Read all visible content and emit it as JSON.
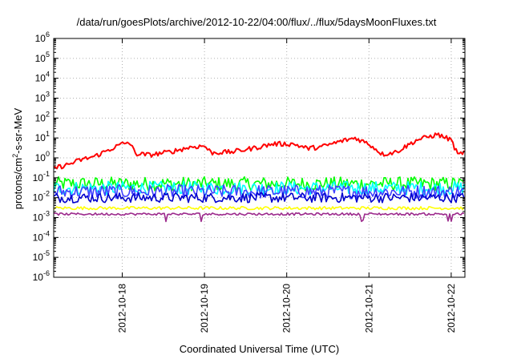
{
  "chart_data": {
    "type": "line",
    "title": "/data/run/goesPlots/archive/2012-10-22/04:00/flux/../flux/5daysMoonFluxes.txt",
    "xlabel": "Coordinated Universal Time (UTC)",
    "ylabel": {
      "prefix": "protons/cm",
      "sup": "2",
      "suffix": "-s-sr-MeV"
    },
    "yscale": "log",
    "ylim": [
      1e-06,
      1000000.0
    ],
    "y_ticks": [
      {
        "base": "10",
        "exp": "-6",
        "value": 1e-06
      },
      {
        "base": "10",
        "exp": "-5",
        "value": 1e-05
      },
      {
        "base": "10",
        "exp": "-4",
        "value": 0.0001
      },
      {
        "base": "10",
        "exp": "-3",
        "value": 0.001
      },
      {
        "base": "10",
        "exp": "-2",
        "value": 0.01
      },
      {
        "base": "10",
        "exp": "-1",
        "value": 0.1
      },
      {
        "base": "10",
        "exp": "0",
        "value": 1.0
      },
      {
        "base": "10",
        "exp": "1",
        "value": 10.0
      },
      {
        "base": "10",
        "exp": "2",
        "value": 100.0
      },
      {
        "base": "10",
        "exp": "3",
        "value": 1000.0
      },
      {
        "base": "10",
        "exp": "4",
        "value": 10000.0
      },
      {
        "base": "10",
        "exp": "5",
        "value": 100000.0
      },
      {
        "base": "10",
        "exp": "6",
        "value": 1000000.0
      }
    ],
    "xlim": [
      "2012-10-17T04:00",
      "2012-10-22T04:00"
    ],
    "x_ticks": [
      {
        "label": "2012-10-18",
        "value": "2012-10-18T00:00"
      },
      {
        "label": "2012-10-19",
        "value": "2012-10-19T00:00"
      },
      {
        "label": "2012-10-20",
        "value": "2012-10-20T00:00"
      },
      {
        "label": "2012-10-21",
        "value": "2012-10-21T00:00"
      },
      {
        "label": "2012-10-22",
        "value": "2012-10-22T00:00"
      }
    ],
    "grid": true,
    "series": [
      {
        "color": "#ff0000",
        "values": [
          {
            "x": "2012-10-17T04:00",
            "y": 0.3
          },
          {
            "x": "2012-10-17T08:00",
            "y": 0.45
          },
          {
            "x": "2012-10-17T12:00",
            "y": 0.8
          },
          {
            "x": "2012-10-17T16:00",
            "y": 1.2
          },
          {
            "x": "2012-10-17T20:00",
            "y": 2.5
          },
          {
            "x": "2012-10-18T00:00",
            "y": 5
          },
          {
            "x": "2012-10-18T02:00",
            "y": 6
          },
          {
            "x": "2012-10-18T04:00",
            "y": 1.6
          },
          {
            "x": "2012-10-18T08:00",
            "y": 1.4
          },
          {
            "x": "2012-10-18T14:00",
            "y": 2
          },
          {
            "x": "2012-10-18T20:00",
            "y": 3.5
          },
          {
            "x": "2012-10-19T00:00",
            "y": 4
          },
          {
            "x": "2012-10-19T02:00",
            "y": 1.8
          },
          {
            "x": "2012-10-19T08:00",
            "y": 2
          },
          {
            "x": "2012-10-19T14:00",
            "y": 3
          },
          {
            "x": "2012-10-19T20:00",
            "y": 5
          },
          {
            "x": "2012-10-20T02:00",
            "y": 5
          },
          {
            "x": "2012-10-20T06:00",
            "y": 3
          },
          {
            "x": "2012-10-20T10:00",
            "y": 3.5
          },
          {
            "x": "2012-10-20T16:00",
            "y": 7
          },
          {
            "x": "2012-10-20T20:00",
            "y": 10
          },
          {
            "x": "2012-10-21T00:00",
            "y": 5
          },
          {
            "x": "2012-10-21T04:00",
            "y": 1.5
          },
          {
            "x": "2012-10-21T08:00",
            "y": 2
          },
          {
            "x": "2012-10-21T14:00",
            "y": 8
          },
          {
            "x": "2012-10-21T20:00",
            "y": 15
          },
          {
            "x": "2012-10-22T00:00",
            "y": 8
          },
          {
            "x": "2012-10-22T02:00",
            "y": 1.3
          },
          {
            "x": "2012-10-22T04:00",
            "y": 2.2
          }
        ]
      },
      {
        "color": "#00ff00",
        "values": [
          {
            "x": "2012-10-17T04:00",
            "y": 0.05
          },
          {
            "x": "2012-10-19T00:00",
            "y": 0.05
          },
          {
            "x": "2012-10-22T04:00",
            "y": 0.05
          }
        ]
      },
      {
        "color": "#00ffff",
        "values": [
          {
            "x": "2012-10-17T04:00",
            "y": 0.03
          },
          {
            "x": "2012-10-22T04:00",
            "y": 0.03
          }
        ]
      },
      {
        "color": "#4040ff",
        "values": [
          {
            "x": "2012-10-17T04:00",
            "y": 0.02
          },
          {
            "x": "2012-10-22T04:00",
            "y": 0.02
          }
        ]
      },
      {
        "color": "#0000cc",
        "values": [
          {
            "x": "2012-10-17T04:00",
            "y": 0.01
          },
          {
            "x": "2012-10-22T04:00",
            "y": 0.01
          }
        ]
      },
      {
        "color": "#ffff00",
        "values": [
          {
            "x": "2012-10-17T04:00",
            "y": 0.003
          },
          {
            "x": "2012-10-22T04:00",
            "y": 0.003
          }
        ]
      },
      {
        "color": "#9c2a8c",
        "values": [
          {
            "x": "2012-10-17T04:00",
            "y": 0.0015
          },
          {
            "x": "2012-10-22T04:00",
            "y": 0.0015
          }
        ]
      }
    ]
  }
}
